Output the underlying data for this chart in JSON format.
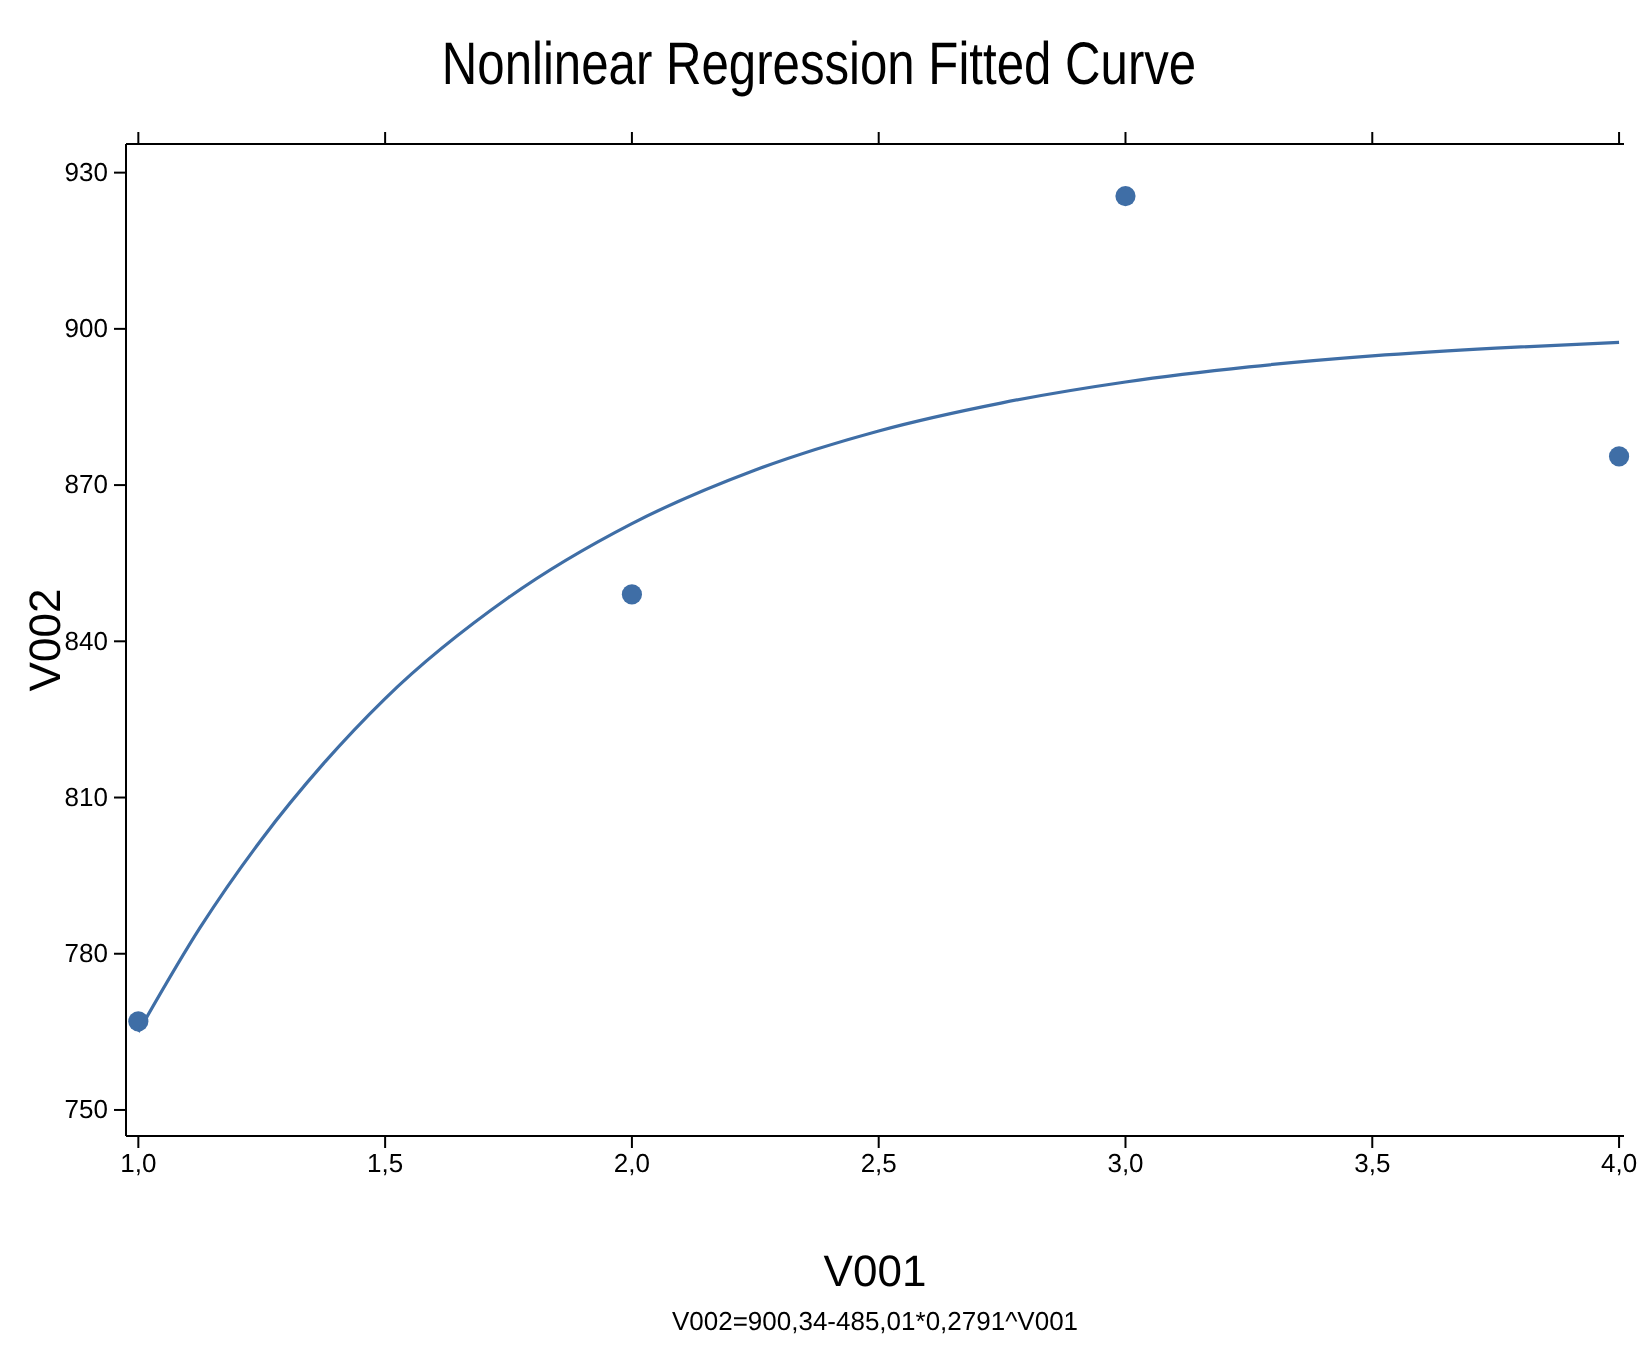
{
  "chart_data": {
    "type": "scatter",
    "title": "Nonlinear Regression Fitted Curve",
    "xlabel": "V001",
    "ylabel": "V002",
    "annotations": [
      "V002=900,34-485,01*0,2791^V001"
    ],
    "series": [
      {
        "color": "#3f6ea6",
        "x": [
          1,
          2,
          3,
          4
        ],
        "values": [
          767,
          849,
          925.5,
          875.5
        ]
      },
      {
        "type": "line",
        "marker": "none",
        "color": "#3f6ea6",
        "x": [
          1,
          1.125,
          1.25,
          1.375,
          1.5,
          1.75,
          2,
          2.25,
          2.5,
          2.75,
          3,
          3.25,
          3.5,
          3.75,
          4
        ],
        "values": [
          765,
          785,
          802,
          816.5,
          829,
          848.4,
          862.6,
          872.9,
          880.4,
          885.8,
          889.8,
          892.7,
          894.8,
          896.3,
          897.4
        ]
      }
    ],
    "xlim": [
      0.975,
      4.01
    ],
    "ylim": [
      745,
      935.5
    ],
    "xticks": [
      {
        "value": 1,
        "label": "1,0"
      },
      {
        "value": 1.5,
        "label": "1,5"
      },
      {
        "value": 2,
        "label": "2,0"
      },
      {
        "value": 2.5,
        "label": "2,5"
      },
      {
        "value": 3,
        "label": "3,0"
      },
      {
        "value": 3.5,
        "label": "3,5"
      },
      {
        "value": 4,
        "label": "4,0"
      }
    ],
    "yticks": [
      750,
      780,
      810,
      840,
      870,
      900,
      930
    ],
    "marker": "circle",
    "grid": false
  }
}
